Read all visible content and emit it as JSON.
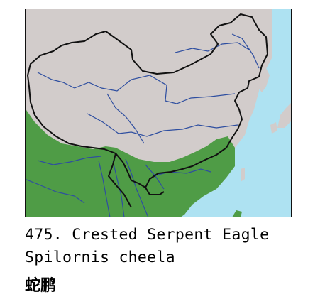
{
  "map": {
    "colors": {
      "sea": "#aee2f2",
      "land": "#d2cccb",
      "range": "#4f9c46",
      "border": "#111111",
      "river": "#2e4ea0"
    }
  },
  "caption": {
    "title": "475. Crested Serpent Eagle",
    "scientific_name": "Spilornis cheela",
    "chinese_name": "蛇鹏"
  }
}
